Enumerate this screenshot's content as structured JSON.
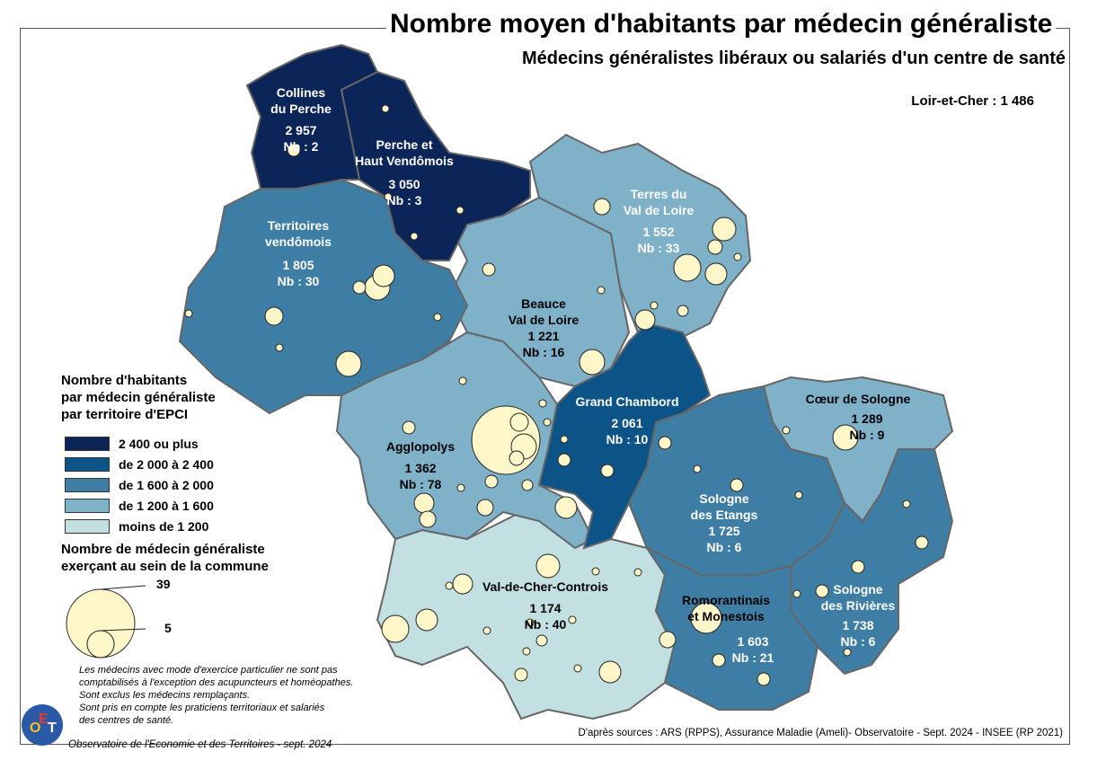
{
  "title": "Nombre moyen d'habitants par médecin généraliste",
  "subtitle": "Médecins généralistes libéraux ou salariés d'un centre de santé",
  "department": "Loir-et-Cher : 1 486",
  "legend": {
    "choropleth_title": [
      "Nombre d'habitants",
      "par médecin généraliste",
      "par territoire d'EPCI"
    ],
    "classes": [
      {
        "label": "2 400 ou plus",
        "color": "#0b2559"
      },
      {
        "label": "de 2 000 à 2 400",
        "color": "#0c5488"
      },
      {
        "label": "de 1 600 à 2 000",
        "color": "#3e7ea4"
      },
      {
        "label": "de 1 200 à 1 600",
        "color": "#7fb1c9"
      },
      {
        "label": "moins de 1 200",
        "color": "#c2dfe1"
      }
    ],
    "bubble_title": [
      "Nombre de médecin généraliste",
      "exerçant au sein de la commune"
    ],
    "bubble_max": "39",
    "bubble_min": "5",
    "bubble_color": "#fff7c9"
  },
  "epci": [
    {
      "name": [
        "Collines",
        "du Perche"
      ],
      "value": "2 957",
      "nb": "Nb : 2"
    },
    {
      "name": [
        "Perche et",
        "Haut Vendômois"
      ],
      "value": "3 050",
      "nb": "Nb : 3"
    },
    {
      "name": [
        "Territoires",
        "vendômois"
      ],
      "value": "1 805",
      "nb": "Nb : 30"
    },
    {
      "name": [
        "Terres du",
        "Val de Loire"
      ],
      "value": "1 552",
      "nb": "Nb : 33"
    },
    {
      "name": [
        "Beauce",
        "Val de Loire"
      ],
      "value": "1 221",
      "nb": "Nb : 16"
    },
    {
      "name": [
        "Grand Chambord"
      ],
      "value": "2 061",
      "nb": "Nb : 10"
    },
    {
      "name": [
        "Cœur de Sologne"
      ],
      "value": "1 289",
      "nb": "Nb : 9"
    },
    {
      "name": [
        "Agglopolys"
      ],
      "value": "1 362",
      "nb": "Nb : 78"
    },
    {
      "name": [
        "Sologne",
        "des Etangs"
      ],
      "value": "1 725",
      "nb": "Nb : 6"
    },
    {
      "name": [
        "Val-de-Cher-Controis"
      ],
      "value": "1 174",
      "nb": "Nb : 40"
    },
    {
      "name": [
        "Romorantinais",
        "et Monestois"
      ],
      "value": "1 603",
      "nb": "Nb : 21"
    },
    {
      "name": [
        "Sologne",
        "des Rivières"
      ],
      "value": "1 738",
      "nb": "Nb : 6"
    }
  ],
  "notes": [
    "Les médecins avec mode d'exercice particulier ne sont pas",
    "comptabilisés à l'exception des acupuncteurs et homéopathes.",
    "Sont exclus les médecins remplaçants.",
    "Sont pris en compte les praticiens territoriaux et salariés",
    "des centres de santé."
  ],
  "source": "D'après sources : ARS (RPPS), Assurance Maladie (Ameli)- Observatoire - Sept. 2024 - INSEE (RP 2021)",
  "credit": "Observatoire de l'Economie et des Territoires - sept. 2024",
  "logo_letters": [
    "O",
    "E",
    "T"
  ]
}
